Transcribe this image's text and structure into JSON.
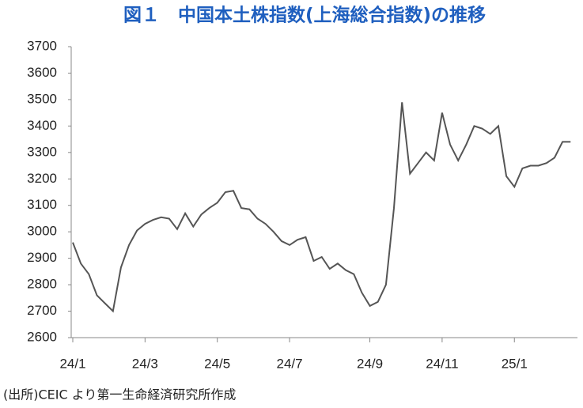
{
  "chart_data": {
    "type": "line",
    "title": "図１　中国本土株指数(上海総合指数)の推移",
    "note": "(出所)CEIC より第一生命経済研究所作成",
    "categories": [
      "24/1",
      null,
      null,
      null,
      null,
      null,
      null,
      null,
      null,
      "24/3",
      null,
      null,
      null,
      null,
      null,
      null,
      null,
      null,
      "24/5",
      null,
      null,
      null,
      null,
      null,
      null,
      null,
      null,
      "24/7",
      null,
      null,
      null,
      null,
      null,
      null,
      null,
      null,
      null,
      "24/9",
      null,
      null,
      null,
      null,
      null,
      null,
      null,
      null,
      "24/11",
      null,
      null,
      null,
      null,
      null,
      null,
      null,
      null,
      "25/1",
      null,
      null,
      null,
      null,
      null,
      null,
      null
    ],
    "values": [
      2960,
      2880,
      2840,
      2760,
      2730,
      2700,
      2865,
      2950,
      3005,
      3030,
      3045,
      3055,
      3050,
      3010,
      3070,
      3020,
      3065,
      3090,
      3110,
      3150,
      3155,
      3090,
      3085,
      3050,
      3030,
      3000,
      2965,
      2950,
      2970,
      2980,
      2890,
      2905,
      2860,
      2880,
      2855,
      2840,
      2770,
      2720,
      2735,
      2800,
      3090,
      3490,
      3220,
      3260,
      3300,
      3270,
      3450,
      3330,
      3270,
      3330,
      3400,
      3390,
      3370,
      3400,
      3210,
      3170,
      3240,
      3250,
      3250,
      3260,
      3280,
      3340,
      3340
    ],
    "color": "#555555",
    "ylim": [
      2600,
      3700
    ],
    "yticks": [
      2600,
      2700,
      2800,
      2900,
      3000,
      3100,
      3200,
      3300,
      3400,
      3500,
      3600,
      3700
    ],
    "grid": false
  }
}
